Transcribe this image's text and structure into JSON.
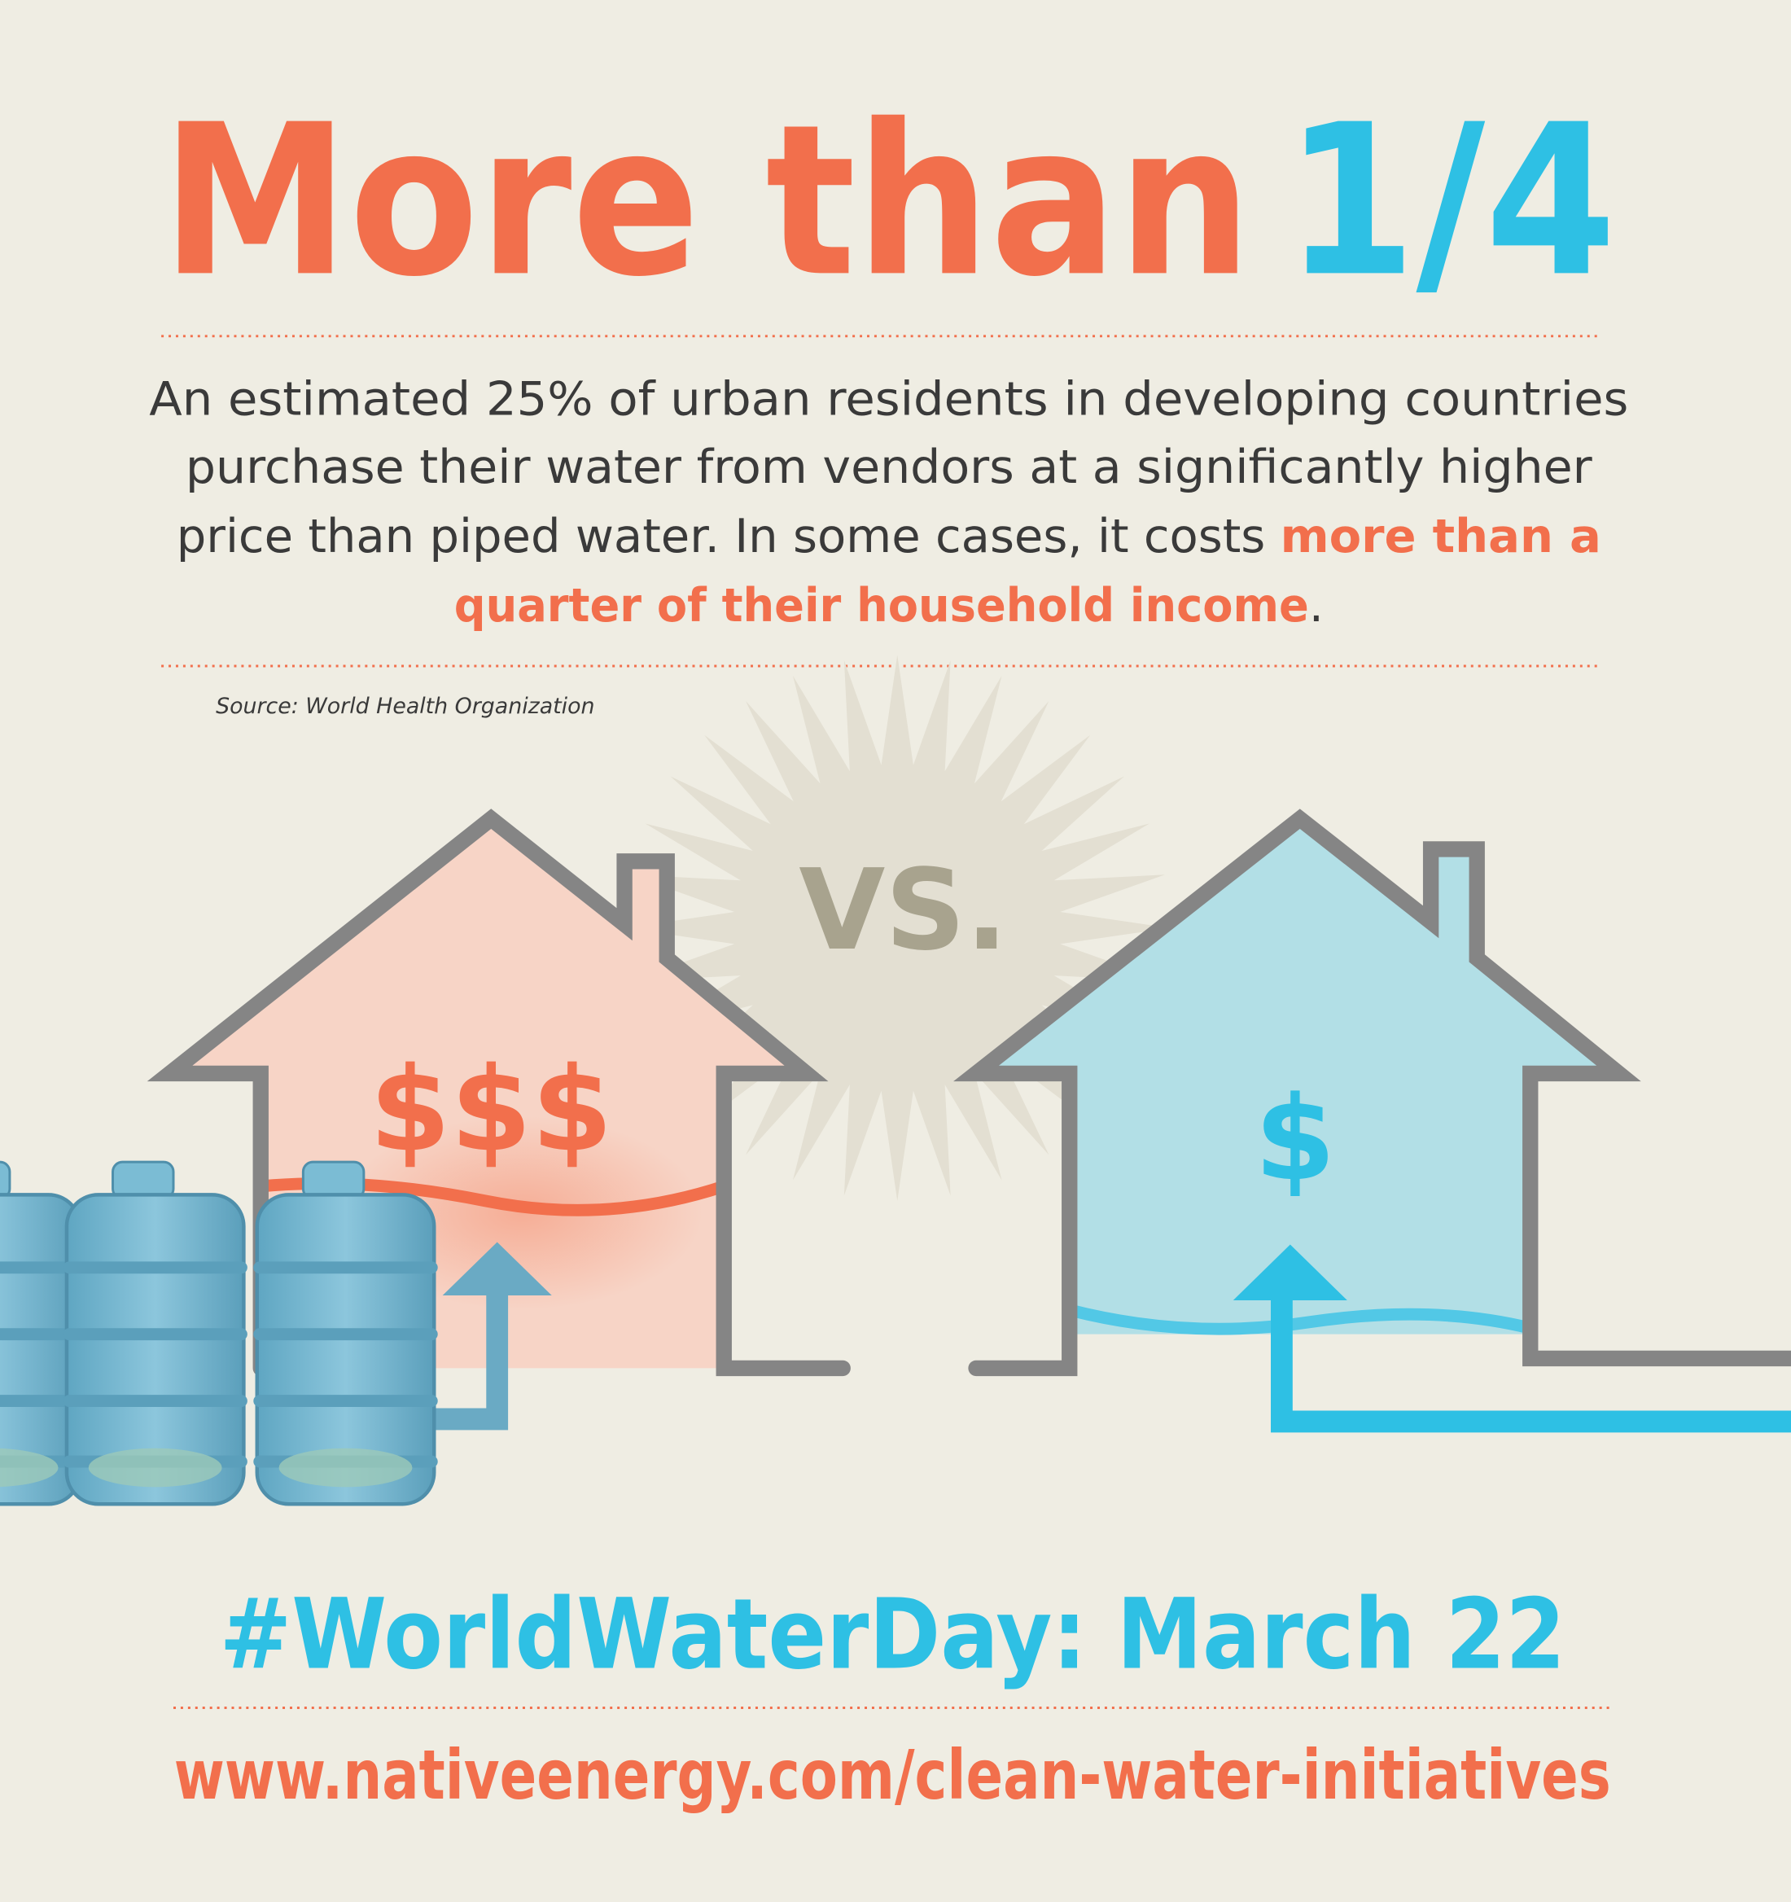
{
  "headline": {
    "text": "More than",
    "highlight": "1/4"
  },
  "body": {
    "lines": [
      "An estimated 25% of urban residents in developing countries",
      "purchase their water from vendors at a significantly higher",
      "price than piped water. In some cases, it costs "
    ],
    "highlight_lines": [
      "more than a",
      "quarter of their household income"
    ],
    "end": "."
  },
  "source": "Source: World Health Organization",
  "illustration": {
    "versus": "VS.",
    "left_house": "$$$",
    "right_house": "$"
  },
  "footer": {
    "hashtag": "#WorldWaterDay: March 22",
    "url": "www.nativeenergy.com/clean-water-initiatives"
  }
}
